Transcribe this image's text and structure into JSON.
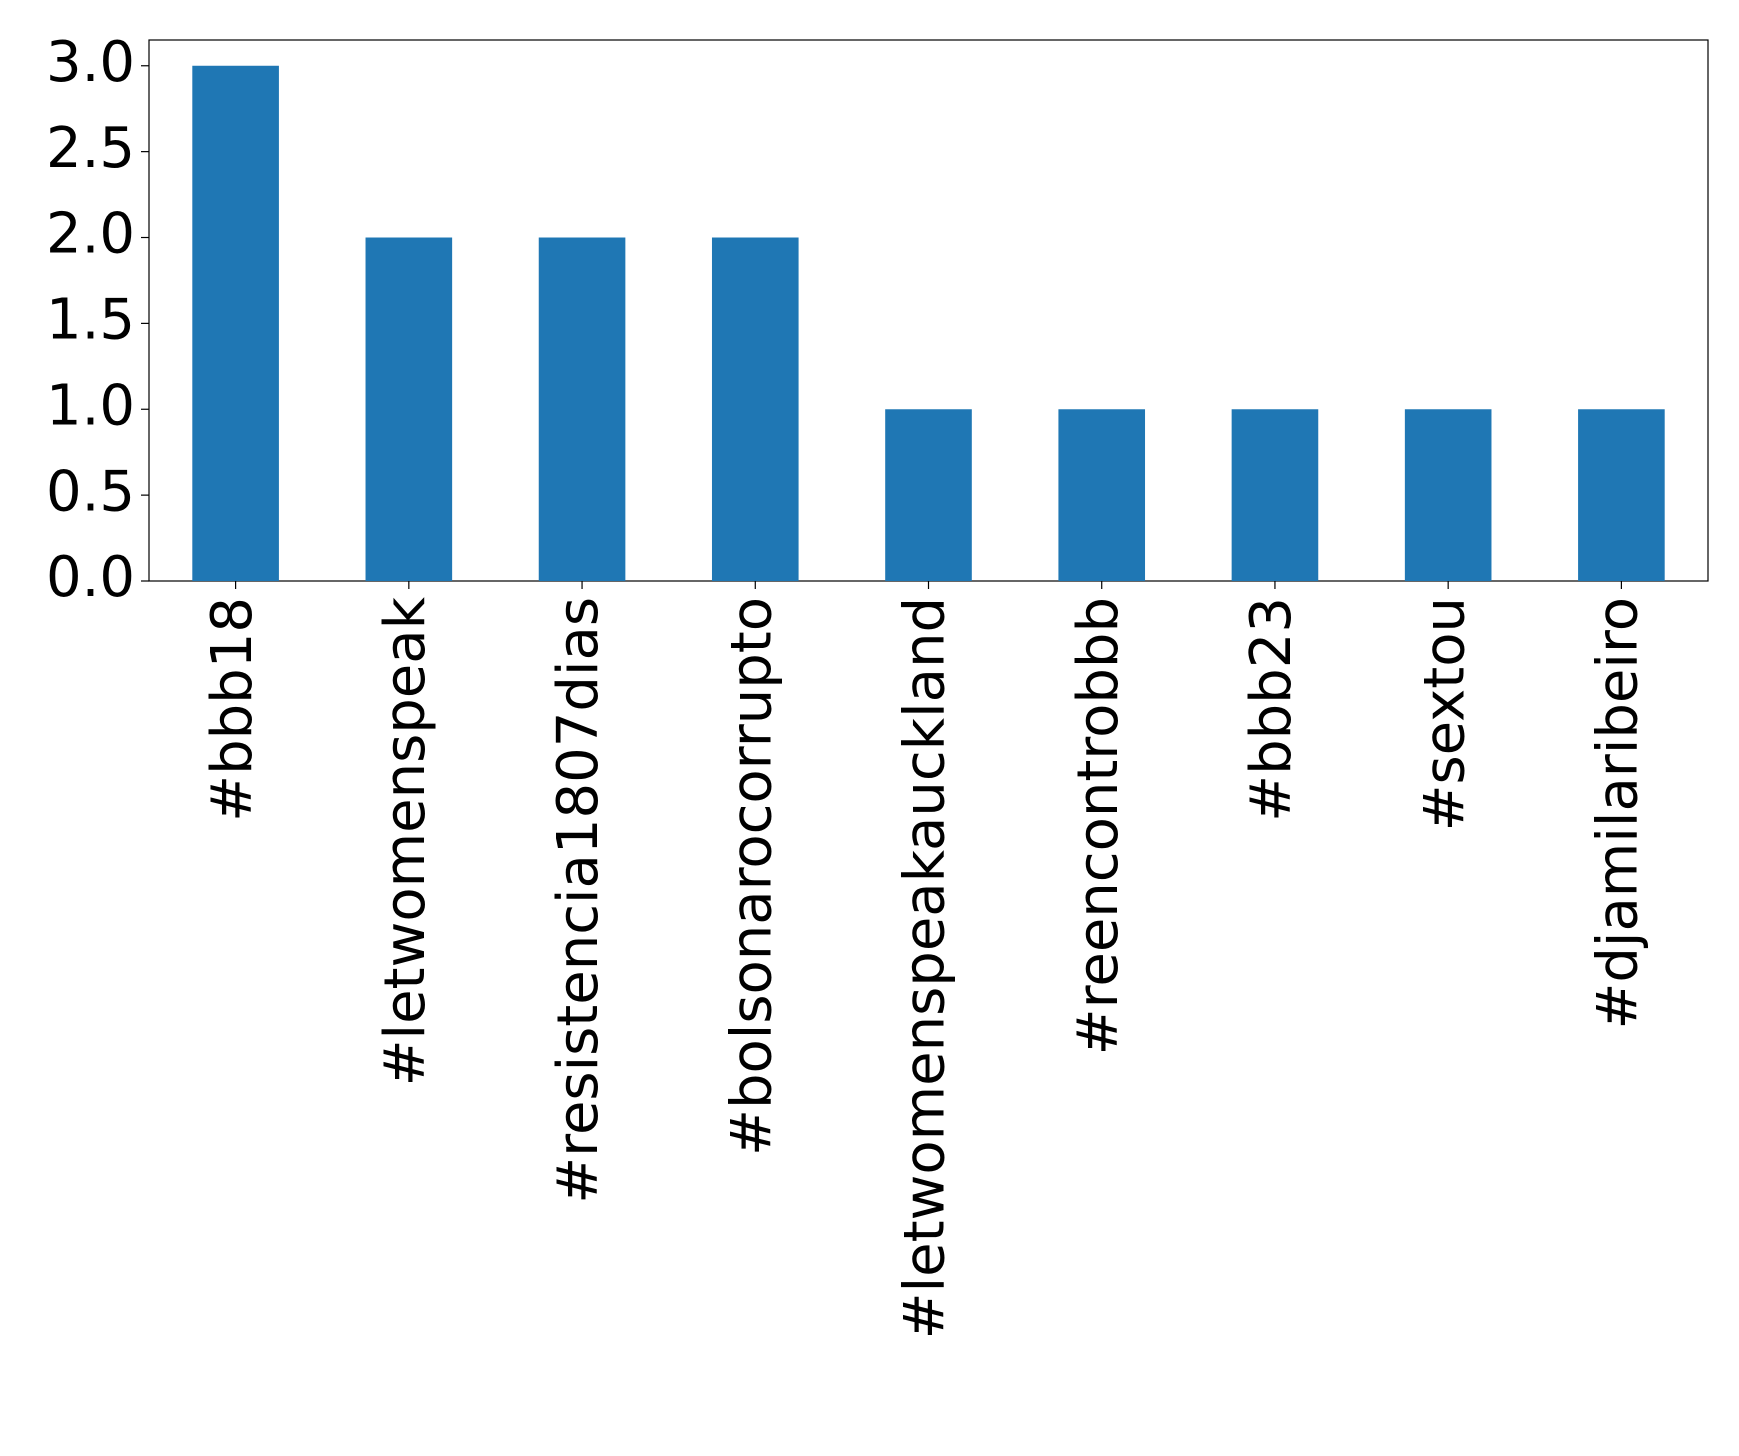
{
  "chart_data": {
    "type": "bar",
    "categories": [
      "#bbb18",
      "#letwomenspeak",
      "#resistencia1807dias",
      "#bolsonarocorrupto",
      "#letwomenspeakauckland",
      "#reencontrobbb",
      "#bbb23",
      "#sextou",
      "#djamilaribeiro"
    ],
    "values": [
      3,
      2,
      2,
      2,
      1,
      1,
      1,
      1,
      1
    ],
    "color": "#1f77b4",
    "ylim": [
      0,
      3.15
    ],
    "yticks": [
      {
        "value": 0,
        "label": "0.0"
      },
      0.5,
      {
        "value": 1,
        "label": "1.0"
      },
      1.5,
      {
        "value": 2,
        "label": "2.0"
      },
      2.5,
      {
        "value": 3,
        "label": "3.0"
      }
    ],
    "grid": false
  }
}
